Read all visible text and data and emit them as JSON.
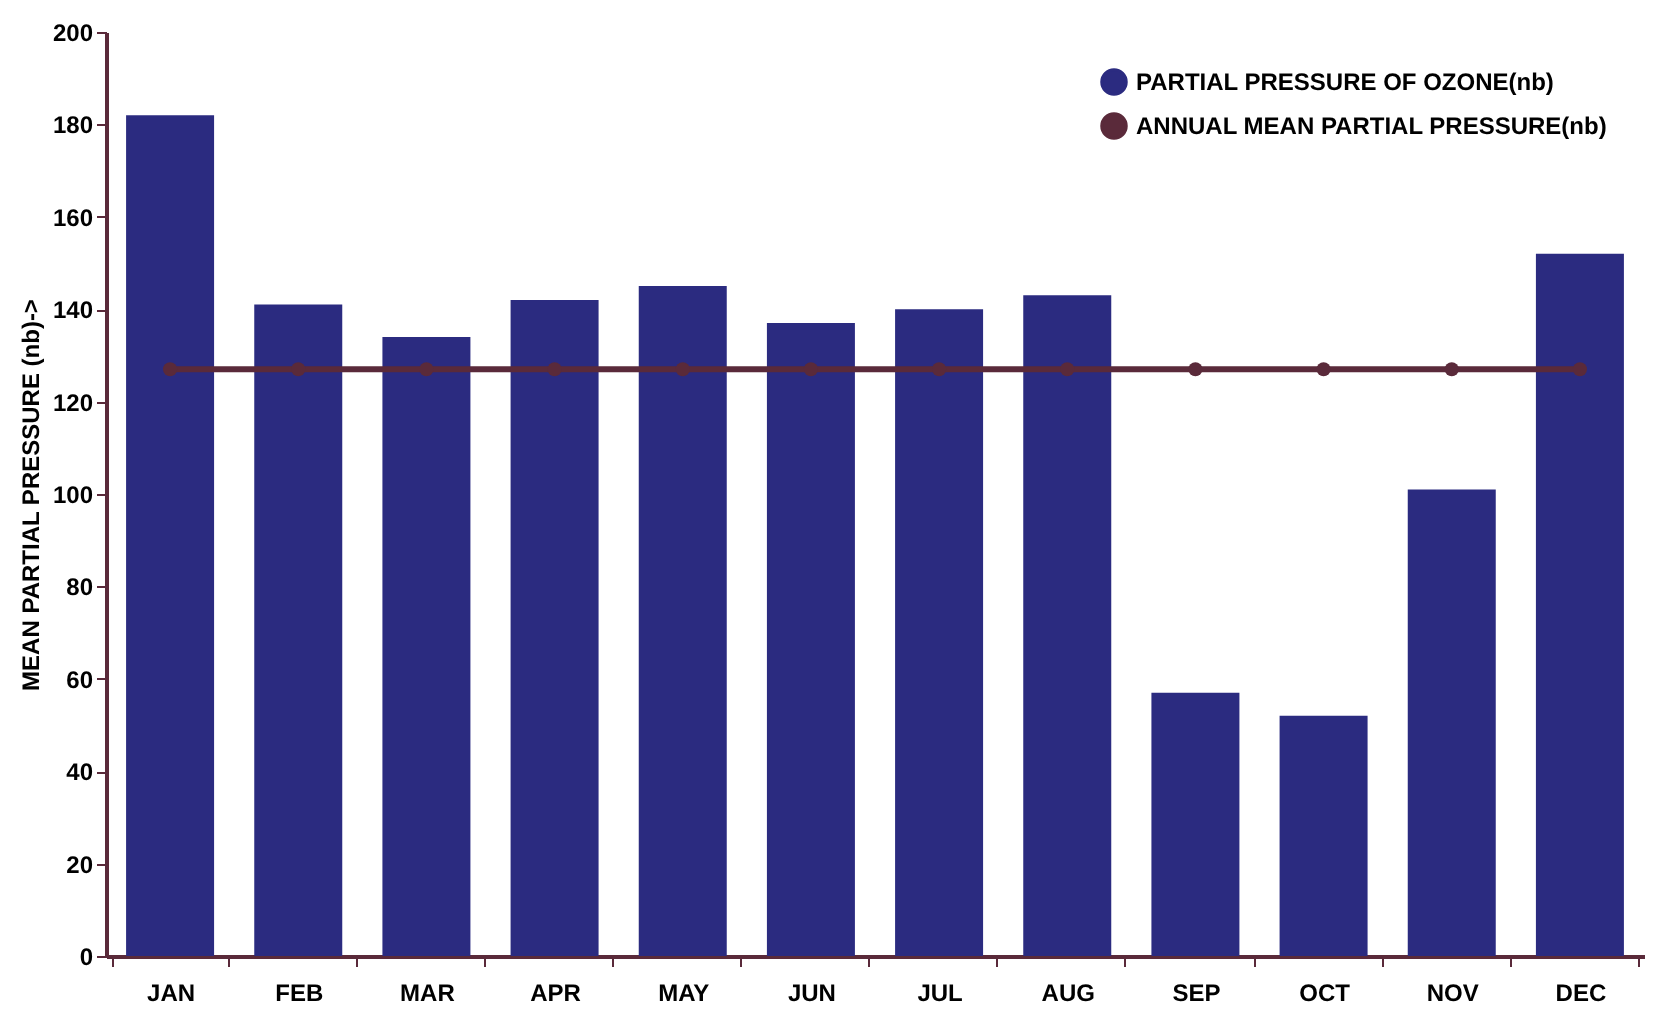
{
  "chart_data": {
    "type": "bar",
    "ylabel": "MEAN PARTIAL PRESSURE (nb)->",
    "categories": [
      "JAN",
      "FEB",
      "MAR",
      "APR",
      "MAY",
      "JUN",
      "JUL",
      "AUG",
      "SEP",
      "OCT",
      "NOV",
      "DEC"
    ],
    "series": [
      {
        "name": "PARTIAL PRESSURE OF OZONE(nb)",
        "color": "#2b2b80",
        "values": [
          182,
          141,
          134,
          142,
          145,
          137,
          140,
          143,
          57,
          52,
          101,
          152
        ]
      },
      {
        "name": "ANNUAL MEAN PARTIAL PRESSURE(nb)",
        "type": "line",
        "color": "#5a2a3a",
        "marker": "circle",
        "values": [
          127,
          127,
          127,
          127,
          127,
          127,
          127,
          127,
          127,
          127,
          127,
          127
        ]
      }
    ],
    "ylim": [
      0,
      200
    ],
    "yticks": [
      0,
      20,
      40,
      60,
      80,
      100,
      120,
      140,
      160,
      180,
      200
    ],
    "grid": false,
    "legend": "top right"
  }
}
